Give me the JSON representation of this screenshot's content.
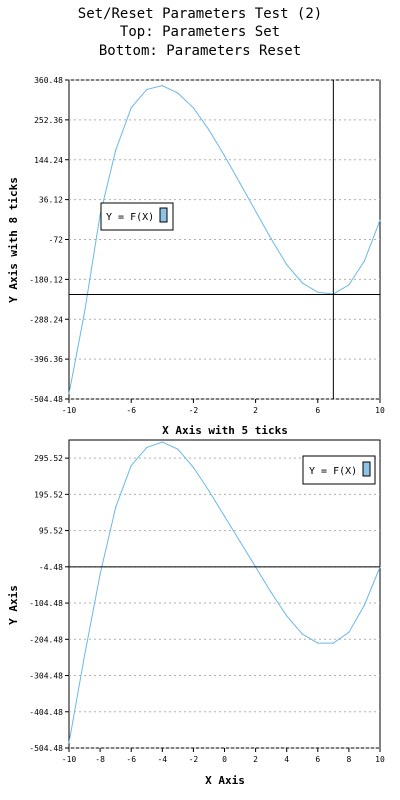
{
  "figure": {
    "title_lines": [
      "Set/Reset Parameters Test (2)",
      "Top: Parameters Set",
      "Bottom: Parameters Reset"
    ]
  },
  "colors": {
    "curve": "#6ab8e8",
    "grid": "#b0b0b0",
    "axis": "#000000",
    "legend_swatch": "#8cc4e8"
  },
  "chart_data": [
    {
      "type": "line",
      "title": "Top: Parameters Set",
      "xlabel": "X Axis with 5 ticks",
      "ylabel": "Y Axis with 8 ticks",
      "xlim": [
        -10,
        10
      ],
      "ylim": [
        -504.48,
        360.48
      ],
      "x_ticks": [
        "-10",
        "-6",
        "-2",
        "2",
        "6",
        "10"
      ],
      "x_tick_values": [
        -10,
        -6,
        -2,
        2,
        6,
        10
      ],
      "y_ticks": [
        "360.48",
        "252.36",
        "144.24",
        "36.12",
        "-72",
        "-180.12",
        "-288.24",
        "-396.36",
        "-504.48"
      ],
      "y_tick_values": [
        360.48,
        252.36,
        144.24,
        36.12,
        -72,
        -180.12,
        -288.24,
        -396.36,
        -504.48
      ],
      "grid": "horizontal dotted",
      "legend": {
        "placement": "left",
        "entries": [
          "Y = F(X)"
        ]
      },
      "reference_lines": {
        "x": 7,
        "y": -221
      },
      "series": [
        {
          "name": "Y = F(X)",
          "x": [
            -10,
            -9,
            -8,
            -7,
            -6,
            -5,
            -4,
            -3,
            -2,
            -1,
            0,
            1,
            2,
            3,
            4,
            5,
            6,
            7,
            8,
            9,
            10
          ],
          "y": [
            -490,
            -270,
            -5,
            170,
            285,
            335,
            345,
            325,
            285,
            225,
            155,
            80,
            5,
            -70,
            -140,
            -190,
            -215,
            -220,
            -195,
            -130,
            -20
          ]
        }
      ]
    },
    {
      "type": "line",
      "title": "Bottom: Parameters Reset",
      "xlabel": "X Axis",
      "ylabel": "Y Axis",
      "xlim": [
        -10,
        10
      ],
      "ylim": [
        -504.48,
        345.52
      ],
      "x_ticks": [
        "-10",
        "-8",
        "-6",
        "-4",
        "-2",
        "0",
        "2",
        "4",
        "6",
        "8",
        "10"
      ],
      "x_tick_values": [
        -10,
        -8,
        -6,
        -4,
        -2,
        0,
        2,
        4,
        6,
        8,
        10
      ],
      "y_ticks": [
        "295.52",
        "195.52",
        "95.52",
        "-4.48",
        "-104.48",
        "-204.48",
        "-304.48",
        "-404.48",
        "-504.48"
      ],
      "y_tick_values": [
        295.52,
        195.52,
        95.52,
        -4.48,
        -104.48,
        -204.48,
        -304.48,
        -404.48,
        -504.48
      ],
      "grid": "horizontal dotted",
      "legend": {
        "placement": "top-right",
        "entries": [
          "Y = F(X)"
        ]
      },
      "reference_lines": {
        "y": -4.48
      },
      "series": [
        {
          "name": "Y = F(X)",
          "x": [
            -10,
            -9,
            -8,
            -7,
            -6,
            -5,
            -4,
            -3,
            -2,
            -1,
            0,
            1,
            2,
            3,
            4,
            5,
            6,
            7,
            8,
            9,
            10
          ],
          "y": [
            -490,
            -250,
            -25,
            160,
            275,
            325,
            340,
            320,
            270,
            205,
            135,
            65,
            -5,
            -75,
            -140,
            -190,
            -215,
            -215,
            -185,
            -110,
            -5
          ]
        }
      ]
    }
  ]
}
